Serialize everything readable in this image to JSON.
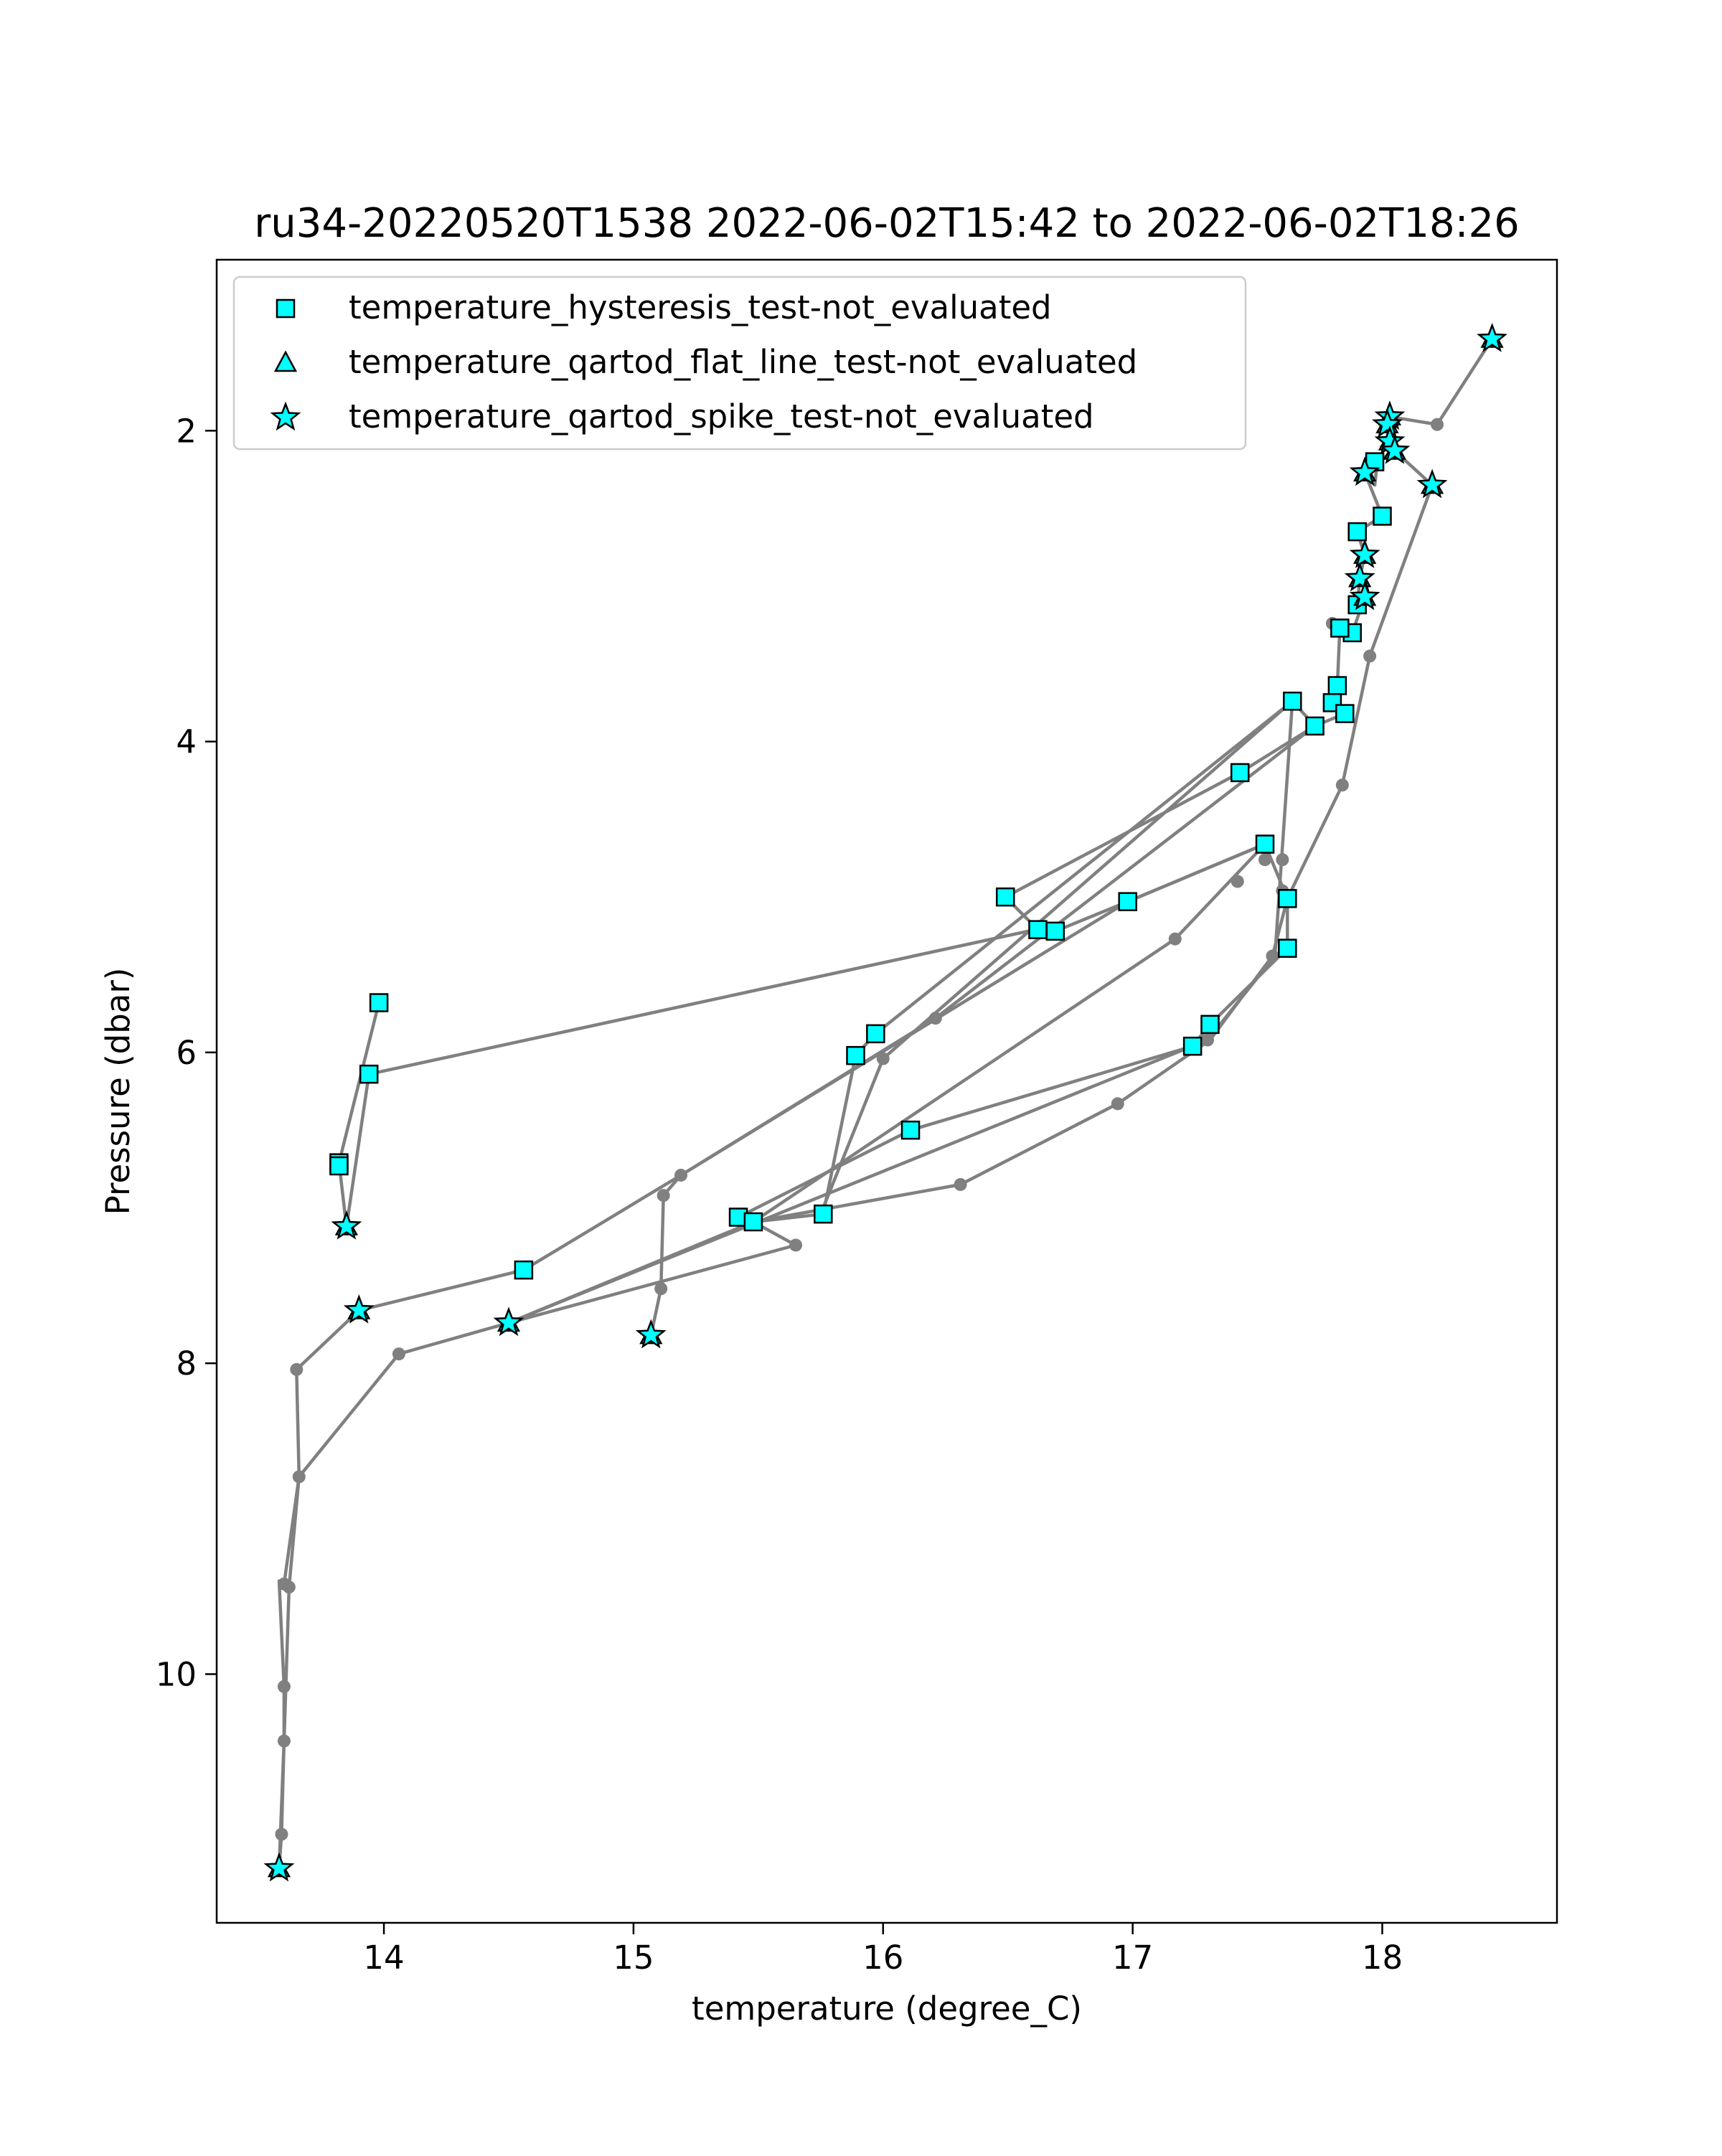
{
  "chart_data": {
    "type": "scatter",
    "title": "ru34-20220520T1538 2022-06-02T15:42 to 2022-06-02T18:26",
    "xlabel": "temperature (degree_C)",
    "ylabel": "Pressure (dbar)",
    "xlim": [
      13.33,
      18.7
    ],
    "ylim": [
      11.6,
      0.9
    ],
    "y_inverted": true,
    "xticks": [
      14,
      15,
      16,
      17,
      18
    ],
    "yticks": [
      2,
      4,
      6,
      8,
      10
    ],
    "grid": false,
    "legend_position": "top-left",
    "line_color": "#808080",
    "marker_color": "#00ffff",
    "profile_line": [
      [
        18.44,
        1.41
      ],
      [
        18.22,
        1.96
      ],
      [
        18.03,
        1.91
      ],
      [
        18.02,
        2.07
      ],
      [
        18.05,
        2.13
      ],
      [
        17.98,
        2.2
      ],
      [
        17.97,
        2.35
      ],
      [
        17.93,
        2.27
      ],
      [
        18.0,
        2.55
      ],
      [
        17.9,
        2.65
      ],
      [
        17.93,
        2.8
      ],
      [
        17.91,
        2.95
      ],
      [
        17.9,
        3.12
      ],
      [
        17.93,
        3.07
      ],
      [
        17.88,
        3.3
      ],
      [
        17.83,
        3.27
      ],
      [
        17.82,
        3.64
      ],
      [
        17.8,
        3.75
      ],
      [
        17.85,
        3.82
      ],
      [
        17.73,
        3.9
      ],
      [
        17.43,
        4.2
      ],
      [
        16.49,
        5.0
      ],
      [
        16.62,
        5.21
      ],
      [
        16.69,
        5.22
      ],
      [
        16.98,
        5.03
      ],
      [
        17.53,
        4.66
      ],
      [
        17.62,
        5.01
      ],
      [
        17.62,
        5.33
      ],
      [
        17.31,
        5.82
      ],
      [
        17.24,
        5.96
      ],
      [
        16.11,
        6.5
      ],
      [
        15.42,
        7.06
      ],
      [
        15.48,
        7.09
      ],
      [
        15.76,
        7.04
      ],
      [
        15.89,
        6.02
      ],
      [
        15.97,
        5.88
      ],
      [
        17.64,
        3.74
      ],
      [
        17.73,
        3.9
      ],
      [
        16.21,
        5.78
      ],
      [
        15.19,
        6.79
      ],
      [
        14.56,
        7.4
      ],
      [
        13.9,
        7.66
      ],
      [
        13.65,
        8.04
      ],
      [
        13.66,
        8.73
      ],
      [
        13.6,
        9.42
      ],
      [
        13.58,
        9.4
      ],
      [
        13.6,
        10.08
      ],
      [
        13.6,
        10.43
      ],
      [
        13.59,
        11.03
      ],
      [
        13.58,
        11.25
      ],
      [
        13.6,
        10.43
      ],
      [
        13.62,
        9.44
      ],
      [
        13.66,
        8.73
      ],
      [
        14.06,
        7.94
      ],
      [
        14.5,
        7.74
      ],
      [
        15.48,
        7.09
      ],
      [
        16.31,
        6.85
      ],
      [
        16.94,
        6.33
      ],
      [
        17.31,
        5.92
      ],
      [
        17.56,
        5.38
      ],
      [
        17.62,
        5.01
      ],
      [
        17.84,
        4.28
      ],
      [
        17.95,
        3.45
      ],
      [
        18.2,
        2.35
      ],
      [
        18.05,
        2.13
      ]
    ],
    "profile_line_2": [
      [
        13.98,
        5.68
      ],
      [
        13.82,
        6.71
      ],
      [
        13.85,
        7.12
      ],
      [
        13.94,
        6.14
      ],
      [
        16.61,
        5.21
      ]
    ],
    "profile_line_3": [
      [
        15.07,
        7.82
      ],
      [
        15.11,
        7.52
      ],
      [
        15.12,
        6.92
      ],
      [
        15.19,
        6.79
      ],
      [
        16.98,
        5.03
      ],
      [
        17.53,
        4.66
      ],
      [
        17.17,
        5.27
      ],
      [
        15.48,
        7.09
      ],
      [
        15.65,
        7.24
      ],
      [
        14.5,
        7.74
      ],
      [
        17.3,
        5.92
      ],
      [
        17.57,
        5.38
      ],
      [
        17.64,
        3.74
      ],
      [
        16.0,
        6.04
      ],
      [
        15.75,
        7.04
      ]
    ],
    "grey_points": [
      [
        18.22,
        1.96
      ],
      [
        17.95,
        3.45
      ],
      [
        17.84,
        4.28
      ],
      [
        17.56,
        5.38
      ],
      [
        17.3,
        5.92
      ],
      [
        16.94,
        6.33
      ],
      [
        16.31,
        6.85
      ],
      [
        15.65,
        7.24
      ],
      [
        14.06,
        7.94
      ],
      [
        13.66,
        8.73
      ],
      [
        13.62,
        9.44
      ],
      [
        13.6,
        9.42
      ],
      [
        13.6,
        10.08
      ],
      [
        13.6,
        10.43
      ],
      [
        13.59,
        11.03
      ],
      [
        13.65,
        8.04
      ],
      [
        15.11,
        7.52
      ],
      [
        15.12,
        6.92
      ],
      [
        15.19,
        6.79
      ],
      [
        16.0,
        6.04
      ],
      [
        16.21,
        5.78
      ],
      [
        17.17,
        5.27
      ],
      [
        17.42,
        4.9
      ],
      [
        17.53,
        4.76
      ],
      [
        17.6,
        4.76
      ],
      [
        17.6,
        4.96
      ],
      [
        17.8,
        3.24
      ]
    ],
    "series": [
      {
        "name": "temperature_hysteresis_test-not_evaluated",
        "marker": "square",
        "points": [
          [
            17.97,
            2.2
          ],
          [
            18.0,
            2.55
          ],
          [
            17.9,
            2.65
          ],
          [
            17.9,
            3.12
          ],
          [
            17.88,
            3.3
          ],
          [
            17.83,
            3.27
          ],
          [
            17.82,
            3.64
          ],
          [
            17.8,
            3.75
          ],
          [
            17.85,
            3.82
          ],
          [
            17.73,
            3.9
          ],
          [
            17.64,
            3.74
          ],
          [
            17.43,
            4.2
          ],
          [
            17.53,
            4.66
          ],
          [
            17.62,
            5.01
          ],
          [
            17.62,
            5.33
          ],
          [
            17.31,
            5.82
          ],
          [
            17.24,
            5.96
          ],
          [
            16.49,
            5.0
          ],
          [
            16.62,
            5.21
          ],
          [
            16.69,
            5.22
          ],
          [
            16.98,
            5.03
          ],
          [
            15.97,
            5.88
          ],
          [
            15.89,
            6.02
          ],
          [
            16.11,
            6.5
          ],
          [
            15.42,
            7.06
          ],
          [
            15.48,
            7.09
          ],
          [
            15.76,
            7.04
          ],
          [
            14.56,
            7.4
          ],
          [
            13.98,
            5.68
          ],
          [
            13.94,
            6.14
          ],
          [
            13.82,
            6.71
          ],
          [
            13.82,
            6.73
          ]
        ]
      },
      {
        "name": "temperature_qartod_flat_line_test-not_evaluated",
        "marker": "triangle",
        "points": [
          [
            18.44,
            1.41
          ],
          [
            18.03,
            1.91
          ],
          [
            18.02,
            1.96
          ],
          [
            18.03,
            2.07
          ],
          [
            18.05,
            2.13
          ],
          [
            17.93,
            2.27
          ],
          [
            18.2,
            2.35
          ],
          [
            17.93,
            2.8
          ],
          [
            17.91,
            2.95
          ],
          [
            17.93,
            3.07
          ],
          [
            13.85,
            7.12
          ],
          [
            13.9,
            7.66
          ],
          [
            14.5,
            7.74
          ],
          [
            15.07,
            7.82
          ],
          [
            13.58,
            11.25
          ]
        ]
      },
      {
        "name": "temperature_qartod_spike_test-not_evaluated",
        "marker": "star",
        "points": [
          [
            18.44,
            1.41
          ],
          [
            18.03,
            1.91
          ],
          [
            18.02,
            1.96
          ],
          [
            18.03,
            2.07
          ],
          [
            18.05,
            2.13
          ],
          [
            17.93,
            2.27
          ],
          [
            18.2,
            2.35
          ],
          [
            17.93,
            2.8
          ],
          [
            17.91,
            2.95
          ],
          [
            17.93,
            3.07
          ],
          [
            13.85,
            7.12
          ],
          [
            13.9,
            7.66
          ],
          [
            14.5,
            7.74
          ],
          [
            15.07,
            7.82
          ],
          [
            13.58,
            11.25
          ]
        ]
      }
    ]
  }
}
